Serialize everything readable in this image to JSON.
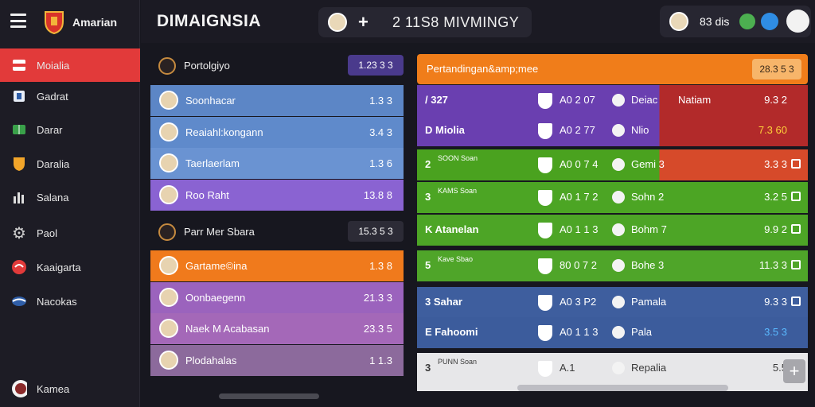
{
  "brand": {
    "name": "Amarian"
  },
  "header": {
    "title": "DIMAIGNSIA",
    "match_ticker": "2 11S8  MIVMINGY",
    "user_value": "83 dis"
  },
  "sidebar": {
    "items": [
      {
        "label": "Moialia",
        "icon": "flag-icon",
        "active": true
      },
      {
        "label": "Gadrat",
        "icon": "cup-icon"
      },
      {
        "label": "Darar",
        "icon": "pitch-icon"
      },
      {
        "label": "Daralia",
        "icon": "shield-icon"
      },
      {
        "label": "Salana",
        "icon": "chart-icon"
      },
      {
        "label": "Paol",
        "icon": "gear-icon"
      },
      {
        "label": "Kaaigarta",
        "icon": "ball-icon"
      },
      {
        "label": "Nacokas",
        "icon": "wave-icon"
      }
    ],
    "footer_label": "Kamea"
  },
  "left_panel": {
    "section1": {
      "label": "Portolgiyo",
      "chip": "1.23 3 3"
    },
    "section1_rows": [
      {
        "name": "Soonhacar",
        "value": "1.3 3",
        "bg": "#5c86c6"
      },
      {
        "name": "Reaiahl:kongann",
        "value": "3.4 3",
        "bg": "#5f8acb"
      },
      {
        "name": "Taerlaerlam",
        "value": "1.3 6",
        "bg": "#6a93d2"
      },
      {
        "name": "Roo Raht",
        "value": "13.8 8",
        "bg": "#8a63d2"
      }
    ],
    "section2": {
      "label": "Parr Mer Sbara",
      "chip": "15.3 5 3"
    },
    "section2_rows": [
      {
        "name": "Gartame©ina",
        "value": "1.3 8",
        "bg": "#f07a1c"
      },
      {
        "name": "Oonbaegenn",
        "value": "21.3 3",
        "bg": "#9b63bd"
      },
      {
        "name": "Naek M Acabasan",
        "value": "23.3 5",
        "bg": "#a468b8"
      },
      {
        "name": "Plodahalas",
        "value": "1 1.3",
        "bg": "#8c6a9c"
      }
    ]
  },
  "right_panel": {
    "header": {
      "label": "Pertandingan&amp;mee",
      "chip": "28.3 5 3"
    },
    "matches": [
      {
        "c1": "/ 327",
        "score": "A0 2 07",
        "team": "Deiac",
        "team2": "Natiam",
        "odd": "9.3 2",
        "bg": "#6a3fb0",
        "bg2": "#b22a2a"
      },
      {
        "c1": "D Miolia",
        "score": "A0 2 77",
        "team": "Nlio",
        "odd": "7.3 60",
        "bg": "#6a3fb0",
        "bg2": "#b22a2a"
      },
      {
        "c1": "2",
        "c1small": "SOON Soan",
        "score": "A0 0 7 4",
        "team": "Gemi 3",
        "odd": "3.3 3",
        "bg": "#4aa21f",
        "bg2": "#d64a2a"
      },
      {
        "c1": "3",
        "c1small": "KAMS Soan",
        "score": "A0 1 7 2",
        "team": "Sohn 2",
        "odd": "3.2 5",
        "bg": "#4ca524"
      },
      {
        "c1": "K Atanelan",
        "score": "A0 1 1 3",
        "team": "Bohm 7",
        "odd": "9.9 2",
        "bg": "#4da526"
      },
      {
        "c1": "5",
        "c1small": "Kave Sbao",
        "score": "80 0 7 2",
        "team": "Bohe 3",
        "odd": "11.3 3",
        "bg": "#4fa529"
      },
      {
        "c1": "3 Sahar",
        "score": "A0 3 P2",
        "team": "Pamala",
        "odd": "9.3 3",
        "bg": "#3e5e9e"
      },
      {
        "c1": "E Fahoomi",
        "score": "A0 1 1 3",
        "team": "Pala",
        "odd": "3.5 3",
        "bg": "#3c5c9c"
      },
      {
        "c1": "3",
        "c1small": "PUNN Soan",
        "score": "A.1",
        "team": "Repalia",
        "odd": "5.5",
        "bg": "#e7e7e9"
      }
    ]
  }
}
